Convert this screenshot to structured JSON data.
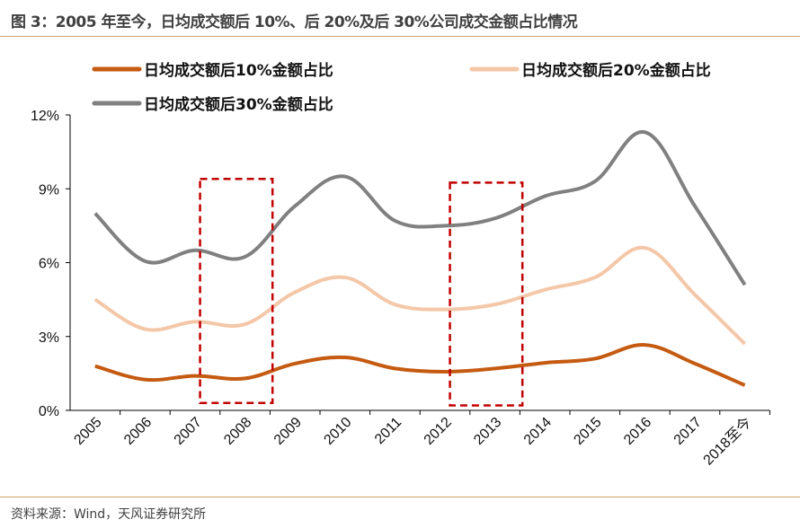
{
  "title": "图 3：2005 年至今，日均成交额后 10%、后 20%及后 30%公司成交金额占比情况",
  "source": "资料来源：Wind，天风证券研究所",
  "chart_data": {
    "type": "line",
    "categories": [
      "2005",
      "2006",
      "2007",
      "2008",
      "2009",
      "2010",
      "2011",
      "2012",
      "2013",
      "2014",
      "2015",
      "2016",
      "2017",
      "2018至今"
    ],
    "series": [
      {
        "name": "日均成交额后10%金额占比",
        "color": "#C55A11",
        "values": [
          1.8,
          1.25,
          1.4,
          1.3,
          1.9,
          2.15,
          1.7,
          1.57,
          1.7,
          1.93,
          2.1,
          2.66,
          1.9,
          1.02
        ]
      },
      {
        "name": "日均成交额后20%金额占比",
        "color": "#F4C7A8",
        "values": [
          4.5,
          3.3,
          3.6,
          3.5,
          4.8,
          5.4,
          4.3,
          4.1,
          4.3,
          4.9,
          5.4,
          6.6,
          4.7,
          2.7
        ]
      },
      {
        "name": "日均成交额后30%金额占比",
        "color": "#808080",
        "values": [
          8.0,
          6.06,
          6.5,
          6.24,
          8.3,
          9.5,
          7.7,
          7.5,
          7.8,
          8.7,
          9.3,
          11.3,
          8.3,
          5.1
        ]
      }
    ],
    "yticks": [
      "0%",
      "3%",
      "6%",
      "9%",
      "12%"
    ],
    "ylim": [
      0,
      12
    ],
    "yunit": "%",
    "grid": false,
    "legend_placement": "top",
    "highlight_boxes": [
      {
        "x_from": "2007",
        "x_to": "2008",
        "y_from": 0.3,
        "y_to": 9.4,
        "color": "#C00000",
        "style": "dashed"
      },
      {
        "x_from": "2012",
        "x_to": "2013",
        "y_from": 0.2,
        "y_to": 9.25,
        "color": "#C00000",
        "style": "dashed"
      }
    ]
  }
}
